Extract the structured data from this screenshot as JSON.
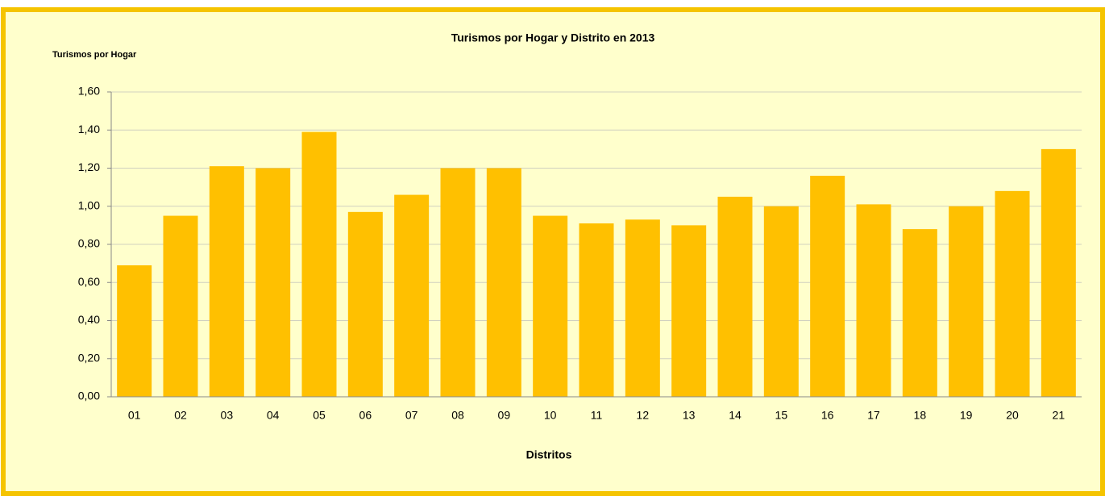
{
  "chart_data": {
    "type": "bar",
    "title": "Turismos por Hogar y Distrito en 2013",
    "y_label": "Turismos por Hogar",
    "x_label": "Distritos",
    "categories": [
      "01",
      "02",
      "03",
      "04",
      "05",
      "06",
      "07",
      "08",
      "09",
      "10",
      "11",
      "12",
      "13",
      "14",
      "15",
      "16",
      "17",
      "18",
      "19",
      "20",
      "21"
    ],
    "values": [
      0.69,
      0.95,
      1.21,
      1.2,
      1.39,
      0.97,
      1.06,
      1.2,
      1.2,
      0.95,
      0.91,
      0.93,
      0.9,
      1.05,
      1.0,
      1.16,
      1.01,
      0.88,
      1.0,
      1.08,
      1.3
    ],
    "color": "#ffc000",
    "ylim": [
      0,
      1.6
    ],
    "yticks": [
      {
        "value": 0,
        "label": "0,00"
      },
      {
        "value": 0.2,
        "label": "0,20"
      },
      {
        "value": 0.4,
        "label": "0,40"
      },
      {
        "value": 0.6,
        "label": "0,60"
      },
      {
        "value": 0.8,
        "label": "0,80"
      },
      {
        "value": 1.0,
        "label": "1,00"
      },
      {
        "value": 1.2,
        "label": "1,20"
      },
      {
        "value": 1.4,
        "label": "1,40"
      },
      {
        "value": 1.6,
        "label": "1,60"
      }
    ],
    "grid": true
  }
}
